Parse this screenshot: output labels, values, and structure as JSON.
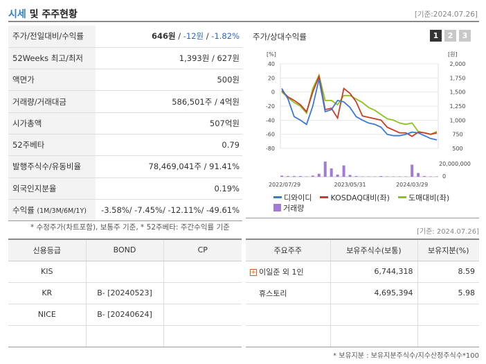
{
  "header": {
    "title_a": "시세",
    "title_b": " 및 주주현황",
    "date": "[기준:2024.07.26]"
  },
  "quote": {
    "price_label": "주가/전일대비/수익률",
    "price": "646원",
    "sep1": " / ",
    "change": "-12원",
    "sep2": " / ",
    "change_pct": "-1.82%",
    "rows": [
      {
        "label": "52Weeks 최고/최저",
        "value": "1,393원 / 627원"
      },
      {
        "label": "액면가",
        "value": "500원"
      },
      {
        "label": "거래량/거래대금",
        "value": "586,501주 / 4억원"
      },
      {
        "label": "시가총액",
        "value": "507억원"
      },
      {
        "label": "52주베타",
        "value": "0.79"
      },
      {
        "label": "발행주식수/유동비율",
        "value": "78,469,041주 / 91.41%"
      },
      {
        "label": "외국인지분율",
        "value": "0.19%"
      }
    ],
    "return_label": "수익률",
    "return_label_small": "(1M/3M/6M/1Y)",
    "return_value": "-3.58%/ -7.45%/ -12.11%/ -49.61%"
  },
  "note": "* 수정주가(차트포함), 보통주 기준, * 52주베타: 주간수익률 기준",
  "date2": "[기준: 2024.07.26]",
  "chart": {
    "title": "주가/상대수익률",
    "buttons": [
      "1",
      "2",
      "3"
    ],
    "left_unit": "[%]",
    "right_unit": "[원]",
    "left_ticks": [
      "40",
      "20",
      "0",
      "-20",
      "-40",
      "-60",
      "-80"
    ],
    "right_ticks": [
      "2,000",
      "1,750",
      "1,500",
      "1,250",
      "1,000",
      "750",
      "500"
    ],
    "vol_tick": "20,000,000",
    "vol_zero": "0",
    "x_ticks": [
      "2022/07/29",
      "2023/05/31",
      "2024/03/29"
    ],
    "legend": {
      "s1": "디와이디",
      "s2": "KOSDAQ대비(좌)",
      "s3": "도매대비(좌)",
      "s4": "거래량"
    },
    "colors": {
      "s1": "#3b78d8",
      "s2": "#cc3a22",
      "s3": "#8cc21e",
      "s4": "#a17bd6"
    }
  },
  "chart_data": {
    "type": "line",
    "y_left_range": [
      -80,
      40
    ],
    "y_right_range": [
      500,
      2000
    ],
    "series": [
      {
        "name": "디와이디",
        "values": [
          5,
          -10,
          -35,
          -40,
          -46,
          -20,
          18,
          -28,
          -25,
          -12,
          -14,
          -22,
          -35,
          -40,
          -44,
          -46,
          -50,
          -60,
          -62,
          -62,
          -60,
          -57,
          -58,
          -62,
          -66,
          -68
        ]
      },
      {
        "name": "KOSDAQ대비(좌)",
        "values": [
          2,
          -7,
          -12,
          -18,
          -28,
          0,
          22,
          -25,
          -23,
          -37,
          5,
          -2,
          -14,
          -34,
          -36,
          -38,
          -40,
          -50,
          -54,
          -58,
          -58,
          -63,
          -57,
          -58,
          -60,
          -58
        ]
      },
      {
        "name": "도매대비(좌)",
        "values": [
          0,
          -8,
          -15,
          -20,
          -30,
          5,
          24,
          -12,
          -12,
          -18,
          -5,
          -5,
          -10,
          -15,
          -22,
          -26,
          -32,
          -38,
          -40,
          -44,
          -46,
          -44,
          -56,
          -58,
          -60,
          -56
        ]
      }
    ],
    "volume": [
      0.3,
      0.2,
      0.2,
      0.2,
      0.1,
      0.3,
      0.8,
      4.0,
      2.2,
      0.6,
      3.0,
      0.5,
      0.2,
      0.1,
      0.1,
      0.1,
      0.2,
      0.1,
      0.1,
      0.1,
      0.1,
      3.2,
      1.0,
      0.2,
      0.1,
      0.1
    ]
  },
  "credit": {
    "headers": [
      "신용등급",
      "BOND",
      "CP"
    ],
    "rows": [
      [
        "KIS",
        "",
        ""
      ],
      [
        "KR",
        "B-  [20240523]",
        ""
      ],
      [
        "NICE",
        "B-  [20240624]",
        ""
      ],
      [
        "",
        "",
        ""
      ]
    ]
  },
  "holders": {
    "headers": [
      "주요주주",
      "보유주식수(보통)",
      "보유지분(%)"
    ],
    "rows": [
      {
        "name": "이일준 외 1인",
        "shares": "6,744,318",
        "pct": "8.59"
      },
      {
        "name": "휴스토리",
        "shares": "4,695,394",
        "pct": "5.98"
      },
      {
        "name": "",
        "shares": "",
        "pct": ""
      },
      {
        "name": "",
        "shares": "",
        "pct": ""
      }
    ]
  },
  "footnote": "* 보유지분 : 보유지분주식수/지수산정주식수*100"
}
